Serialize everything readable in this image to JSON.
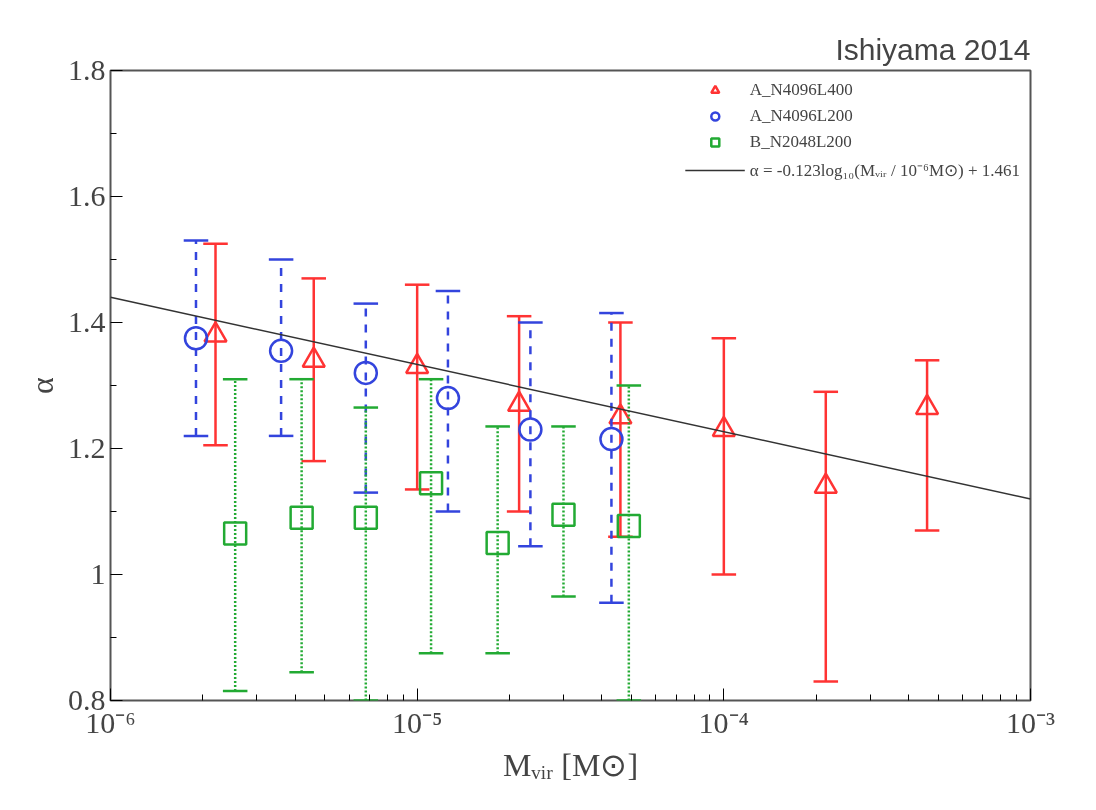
{
  "chart_data": {
    "type": "scatter",
    "xlabel": "Mᵥᵢᵣ [M⊙]",
    "ylabel": "α",
    "annotations": [
      "Ishiyama 2014"
    ],
    "log": "x",
    "grid": false,
    "legend": "top right",
    "xlim": [
      1e-06,
      0.001
    ],
    "xticks": [
      {
        "value": 1e-06,
        "label": "10⁻⁶"
      },
      {
        "value": 1e-05,
        "label": "10⁻⁵"
      },
      {
        "value": 0.0001,
        "label": "10⁻⁴"
      },
      {
        "value": 0.001,
        "label": "10⁻³"
      }
    ],
    "ylim": [
      0.8,
      1.8
    ],
    "yticks": [
      {
        "value": 0.8,
        "label": "0.8"
      },
      {
        "value": 1.0,
        "label": "1"
      },
      {
        "value": 1.2,
        "label": "1.2"
      },
      {
        "value": 1.4,
        "label": "1.4"
      },
      {
        "value": 1.6,
        "label": "1.6"
      },
      {
        "value": 1.8,
        "label": "1.8"
      }
    ],
    "series": [
      {
        "name": "A_N4096L400",
        "color": "#ff3333",
        "marker": "triangle",
        "line_style": "solid",
        "x": [
          2.2e-06,
          4.6e-06,
          1e-05,
          2.15e-05,
          4.6e-05,
          0.0001,
          0.000215,
          0.00046
        ],
        "values": [
          1.38,
          1.34,
          1.33,
          1.27,
          1.25,
          1.23,
          1.14,
          1.265
        ],
        "errors": [
          [
            1.205,
            1.525
          ],
          [
            1.18,
            1.47
          ],
          [
            1.135,
            1.46
          ],
          [
            1.1,
            1.41
          ],
          [
            1.06,
            1.4
          ],
          [
            1.0,
            1.375
          ],
          [
            0.83,
            1.29
          ],
          [
            1.07,
            1.34
          ]
        ]
      },
      {
        "name": "A_N4096L200",
        "color": "#3344dd",
        "marker": "circle",
        "line_style": "dashed",
        "x": [
          1.9e-06,
          3.6e-06,
          6.8e-06,
          1.26e-05,
          2.34e-05,
          4.3e-05
        ],
        "values": [
          1.375,
          1.355,
          1.32,
          1.28,
          1.23,
          1.215
        ],
        "errors": [
          [
            1.22,
            1.53
          ],
          [
            1.22,
            1.5
          ],
          [
            1.13,
            1.43
          ],
          [
            1.1,
            1.45
          ],
          [
            1.045,
            1.4
          ],
          [
            0.955,
            1.415
          ]
        ]
      },
      {
        "name": "B_N2048L200",
        "color": "#22aa33",
        "marker": "square",
        "line_style": "dotted",
        "x": [
          2.55e-06,
          4.2e-06,
          6.8e-06,
          1.11e-05,
          1.83e-05,
          3e-05,
          4.9e-05
        ],
        "values": [
          1.065,
          1.09,
          1.09,
          1.145,
          1.05,
          1.095,
          1.077
        ],
        "errors": [
          [
            0.815,
            1.31
          ],
          [
            0.845,
            1.31
          ],
          [
            0.8,
            1.265
          ],
          [
            0.875,
            1.31
          ],
          [
            0.875,
            1.235
          ],
          [
            0.965,
            1.235
          ],
          [
            0.8,
            1.3
          ]
        ]
      },
      {
        "name": "α = -0.123log₁₀(Mᵥᵢᵣ / 10⁻⁶M⊙) + 1.461",
        "type": "line",
        "color": "#333333",
        "marker": "none",
        "line_style": "solid",
        "x": [
          1e-06,
          0.001
        ],
        "values": [
          1.44,
          1.12
        ]
      }
    ]
  }
}
